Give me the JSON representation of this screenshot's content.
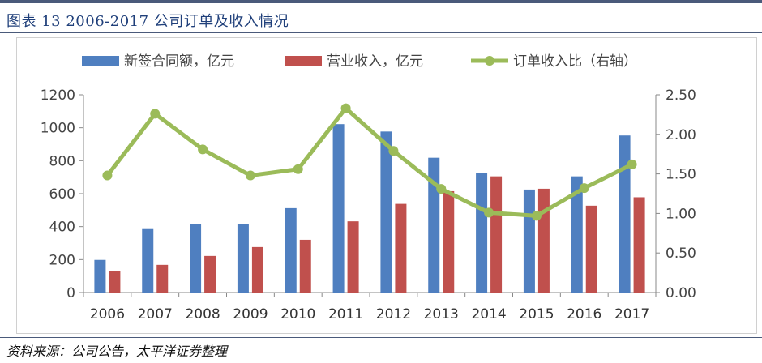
{
  "title": "图表 13 2006-2017 公司订单及收入情况",
  "source": "资料来源：公司公告，太平洋证券整理",
  "chart_data": {
    "type": "bar",
    "categories": [
      "2006",
      "2007",
      "2008",
      "2009",
      "2010",
      "2011",
      "2012",
      "2013",
      "2014",
      "2015",
      "2016",
      "2017"
    ],
    "series": [
      {
        "name": "新签合同额，亿元",
        "type": "bar",
        "axis": "left",
        "color": "#4f7fc0",
        "values": [
          198,
          385,
          415,
          415,
          512,
          1022,
          977,
          818,
          725,
          625,
          705,
          953
        ]
      },
      {
        "name": "营业收入，亿元",
        "type": "bar",
        "axis": "left",
        "color": "#c0504d",
        "values": [
          130,
          168,
          222,
          276,
          320,
          432,
          538,
          615,
          705,
          630,
          527,
          578
        ]
      },
      {
        "name": "订单收入比（右轴）",
        "type": "line",
        "axis": "right",
        "color": "#9bbb59",
        "values": [
          1.48,
          2.26,
          1.81,
          1.48,
          1.56,
          2.33,
          1.79,
          1.31,
          1.01,
          0.97,
          1.32,
          1.62
        ]
      }
    ],
    "left_axis": {
      "min": 0,
      "max": 1200,
      "ticks": [
        "0",
        "200",
        "400",
        "600",
        "800",
        "1000",
        "1200"
      ]
    },
    "right_axis": {
      "min": 0,
      "max": 2.5,
      "ticks": [
        "0.00",
        "0.50",
        "1.00",
        "1.50",
        "2.00",
        "2.50"
      ]
    },
    "grid": false,
    "legend": "top"
  }
}
